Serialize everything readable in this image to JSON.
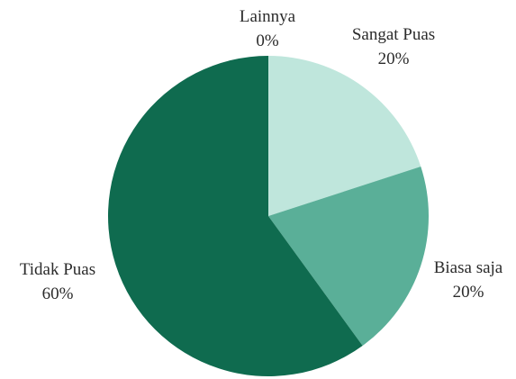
{
  "chart_data": {
    "type": "pie",
    "title": "",
    "slices": [
      {
        "label": "Sangat Puas",
        "value": 20,
        "value_label": "20%",
        "color": "#bfe6dc"
      },
      {
        "label": "Biasa saja",
        "value": 20,
        "value_label": "20%",
        "color": "#5aaf98"
      },
      {
        "label": "Tidak Puas",
        "value": 60,
        "value_label": "60%",
        "color": "#0f6b4f"
      },
      {
        "label": "Lainnya",
        "value": 0,
        "value_label": "0%",
        "color": "#0f6b4f"
      }
    ],
    "start_angle": "12 o'clock",
    "direction": "clockwise",
    "legend": "none"
  }
}
